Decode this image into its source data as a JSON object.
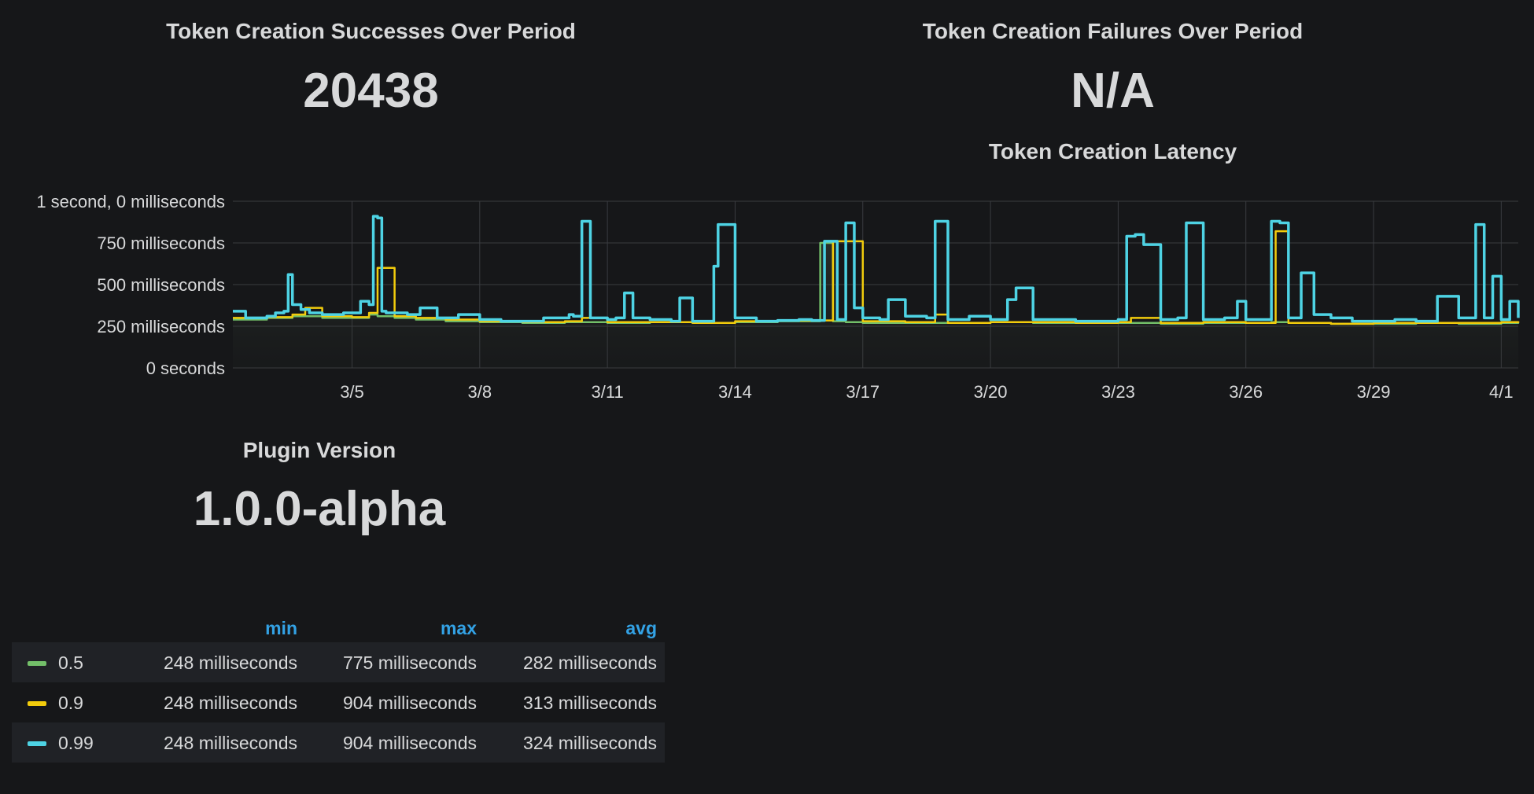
{
  "successes": {
    "title": "Token Creation Successes Over Period",
    "value": "20438"
  },
  "failures": {
    "title": "Token Creation Failures Over Period",
    "value": "N/A"
  },
  "version": {
    "title": "Plugin Version",
    "value": "1.0.0-alpha"
  },
  "latency": {
    "title": "Token Creation Latency",
    "legend_headers": {
      "min": "min",
      "max": "max",
      "avg": "avg"
    },
    "legend_rows": [
      {
        "name": "0.5",
        "color": "#73bf69",
        "min": "248 milliseconds",
        "max": "775 milliseconds",
        "avg": "282 milliseconds"
      },
      {
        "name": "0.9",
        "color": "#f2cc0c",
        "min": "248 milliseconds",
        "max": "904 milliseconds",
        "avg": "313 milliseconds"
      },
      {
        "name": "0.99",
        "color": "#4ed3e4",
        "min": "248 milliseconds",
        "max": "904 milliseconds",
        "avg": "324 milliseconds"
      }
    ]
  },
  "chart_data": {
    "type": "line",
    "title": "Token Creation Latency",
    "y_unit": "ms",
    "ylim": [
      0,
      1000
    ],
    "yticks": [
      {
        "value": 1000,
        "label": "1 second, 0 milliseconds"
      },
      {
        "value": 750,
        "label": "750 milliseconds"
      },
      {
        "value": 500,
        "label": "500 milliseconds"
      },
      {
        "value": 250,
        "label": "250 milliseconds"
      },
      {
        "value": 0,
        "label": "0 seconds"
      }
    ],
    "xlim": [
      2.2,
      32.4
    ],
    "xticks": [
      {
        "value": 5,
        "label": "3/5"
      },
      {
        "value": 8,
        "label": "3/8"
      },
      {
        "value": 11,
        "label": "3/11"
      },
      {
        "value": 14,
        "label": "3/14"
      },
      {
        "value": 17,
        "label": "3/17"
      },
      {
        "value": 20,
        "label": "3/20"
      },
      {
        "value": 23,
        "label": "3/23"
      },
      {
        "value": 26,
        "label": "3/26"
      },
      {
        "value": 29,
        "label": "3/29"
      },
      {
        "value": 32,
        "label": "4/1"
      }
    ],
    "grid": true,
    "series": [
      {
        "name": "0.5",
        "color": "#73bf69",
        "x": [
          2.2,
          3.0,
          3.6,
          4.3,
          5.0,
          5.4,
          5.6,
          6.0,
          6.5,
          7.2,
          8.0,
          9.0,
          10.0,
          11.0,
          12.0,
          13.0,
          14.0,
          15.0,
          15.8,
          16.0,
          16.3,
          16.6,
          17.0,
          18.0,
          19.0,
          20.0,
          21.0,
          22.0,
          23.0,
          24.0,
          25.0,
          26.0,
          26.6,
          27.0,
          28.0,
          29.0,
          30.0,
          31.0,
          32.0,
          32.4
        ],
        "y": [
          290,
          300,
          310,
          300,
          300,
          320,
          310,
          300,
          290,
          280,
          275,
          270,
          275,
          270,
          275,
          270,
          275,
          280,
          280,
          750,
          280,
          275,
          270,
          270,
          270,
          275,
          270,
          270,
          270,
          265,
          270,
          270,
          275,
          270,
          265,
          265,
          270,
          265,
          270,
          275
        ]
      },
      {
        "name": "0.9",
        "color": "#f2cc0c",
        "x": [
          2.2,
          3.0,
          3.6,
          3.9,
          4.3,
          5.0,
          5.4,
          5.6,
          6.0,
          6.5,
          7.2,
          8.0,
          9.0,
          10.0,
          10.4,
          11.0,
          12.0,
          13.0,
          14.0,
          15.0,
          15.9,
          16.3,
          17.0,
          18.0,
          18.7,
          19.0,
          20.0,
          21.0,
          22.0,
          23.0,
          23.3,
          24.0,
          25.0,
          26.0,
          26.7,
          27.0,
          28.0,
          29.0,
          30.0,
          31.0,
          32.0,
          32.4
        ],
        "y": [
          300,
          305,
          320,
          360,
          310,
          305,
          330,
          600,
          310,
          300,
          290,
          280,
          275,
          280,
          300,
          275,
          275,
          270,
          280,
          285,
          285,
          760,
          280,
          275,
          320,
          270,
          275,
          275,
          270,
          275,
          300,
          270,
          275,
          270,
          820,
          270,
          265,
          270,
          270,
          270,
          275,
          280
        ]
      },
      {
        "name": "0.99",
        "color": "#4ed3e4",
        "x": [
          2.2,
          2.5,
          3.0,
          3.2,
          3.4,
          3.5,
          3.6,
          3.8,
          4.0,
          4.3,
          4.8,
          5.2,
          5.4,
          5.5,
          5.6,
          5.7,
          5.8,
          6.0,
          6.3,
          6.6,
          7.0,
          7.2,
          7.5,
          8.0,
          8.5,
          9.0,
          9.5,
          10.0,
          10.1,
          10.2,
          10.4,
          10.6,
          11.0,
          11.2,
          11.4,
          11.6,
          12.0,
          12.5,
          12.7,
          13.0,
          13.3,
          13.5,
          13.6,
          14.0,
          14.5,
          15.0,
          15.5,
          15.8,
          16.1,
          16.4,
          16.6,
          16.8,
          17.0,
          17.4,
          17.6,
          18.0,
          18.5,
          18.7,
          19.0,
          19.5,
          20.0,
          20.4,
          20.6,
          21.0,
          22.0,
          23.0,
          23.2,
          23.4,
          23.6,
          24.0,
          24.4,
          24.6,
          25.0,
          25.5,
          25.8,
          26.0,
          26.5,
          26.6,
          26.8,
          27.0,
          27.3,
          27.6,
          28.0,
          28.5,
          29.0,
          29.5,
          30.0,
          30.5,
          31.0,
          31.4,
          31.6,
          31.8,
          32.0,
          32.2,
          32.4
        ],
        "y": [
          340,
          300,
          310,
          330,
          340,
          560,
          380,
          350,
          330,
          320,
          330,
          400,
          380,
          910,
          900,
          340,
          330,
          330,
          320,
          360,
          300,
          300,
          320,
          290,
          280,
          280,
          300,
          300,
          320,
          310,
          880,
          300,
          290,
          300,
          450,
          300,
          290,
          280,
          420,
          280,
          280,
          610,
          860,
          300,
          280,
          285,
          290,
          285,
          760,
          290,
          870,
          360,
          300,
          290,
          410,
          310,
          300,
          880,
          290,
          310,
          290,
          410,
          480,
          290,
          280,
          290,
          790,
          800,
          740,
          290,
          300,
          870,
          290,
          300,
          400,
          290,
          290,
          880,
          870,
          300,
          570,
          320,
          300,
          280,
          280,
          290,
          280,
          430,
          300,
          860,
          300,
          550,
          290,
          400,
          300
        ]
      }
    ]
  }
}
